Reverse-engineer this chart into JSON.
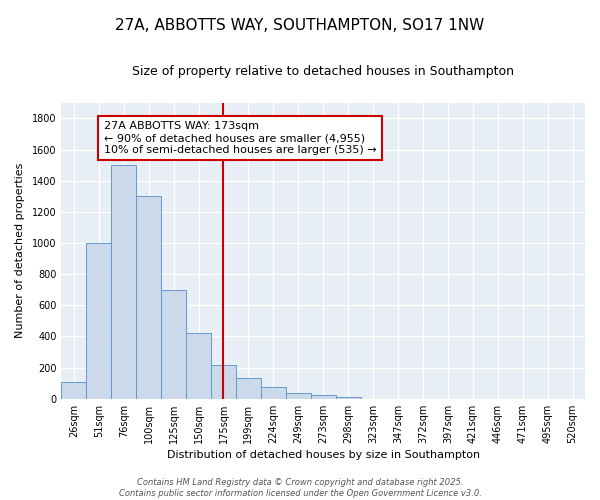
{
  "title": "27A, ABBOTTS WAY, SOUTHAMPTON, SO17 1NW",
  "subtitle": "Size of property relative to detached houses in Southampton",
  "xlabel": "Distribution of detached houses by size in Southampton",
  "ylabel": "Number of detached properties",
  "categories": [
    "26sqm",
    "51sqm",
    "76sqm",
    "100sqm",
    "125sqm",
    "150sqm",
    "175sqm",
    "199sqm",
    "224sqm",
    "249sqm",
    "273sqm",
    "298sqm",
    "323sqm",
    "347sqm",
    "372sqm",
    "397sqm",
    "421sqm",
    "446sqm",
    "471sqm",
    "495sqm",
    "520sqm"
  ],
  "values": [
    110,
    1000,
    1500,
    1300,
    700,
    420,
    215,
    135,
    75,
    40,
    25,
    10,
    0,
    0,
    0,
    0,
    0,
    0,
    0,
    0,
    0
  ],
  "bar_color": "#ccd9ea",
  "bar_edge_color": "#6699cc",
  "vline_x_index": 6,
  "vline_color": "#cc0000",
  "annotation_line1": "27A ABBOTTS WAY: 173sqm",
  "annotation_line2": "← 90% of detached houses are smaller (4,955)",
  "annotation_line3": "10% of semi-detached houses are larger (535) →",
  "annotation_box_color": "#cc0000",
  "annotation_fill": "#ffffff",
  "ylim": [
    0,
    1900
  ],
  "yticks": [
    0,
    200,
    400,
    600,
    800,
    1000,
    1200,
    1400,
    1600,
    1800
  ],
  "bg_color": "#ffffff",
  "plot_bg_color": "#e8eef5",
  "grid_color": "#ffffff",
  "footer_line1": "Contains HM Land Registry data © Crown copyright and database right 2025.",
  "footer_line2": "Contains public sector information licensed under the Open Government Licence v3.0.",
  "title_fontsize": 11,
  "subtitle_fontsize": 9,
  "axis_label_fontsize": 8,
  "tick_fontsize": 7,
  "footer_fontsize": 6,
  "ann_fontsize": 8
}
